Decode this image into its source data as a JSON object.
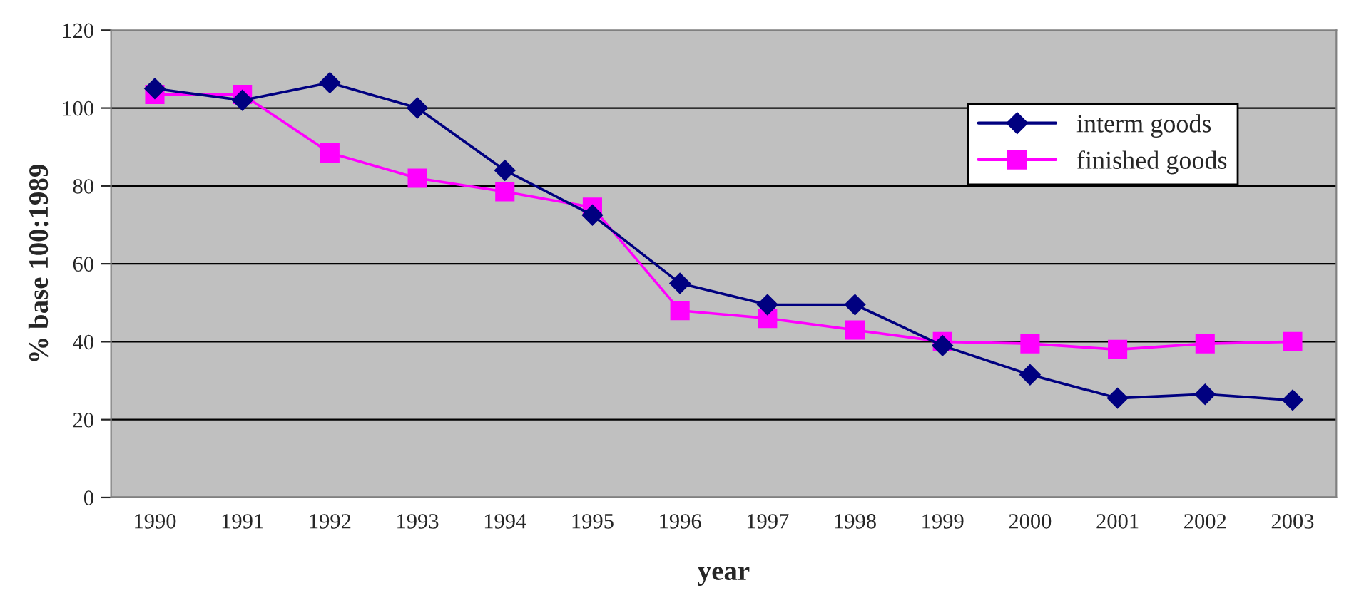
{
  "chart_data": {
    "type": "line",
    "xlabel": "year",
    "ylabel": "% base 100:1989",
    "categories": [
      "1990",
      "1991",
      "1992",
      "1993",
      "1994",
      "1995",
      "1996",
      "1997",
      "1998",
      "1999",
      "2000",
      "2001",
      "2002",
      "2003"
    ],
    "series": [
      {
        "name": "interm goods",
        "color": "#000080",
        "marker": "diamond",
        "values": [
          105,
          102,
          106.5,
          100,
          84,
          72.5,
          55,
          49.5,
          49.5,
          39,
          31.5,
          25.5,
          26.5,
          25
        ]
      },
      {
        "name": "finished goods",
        "color": "#ff00ff",
        "marker": "square",
        "values": [
          103.5,
          103.5,
          88.5,
          82,
          78.5,
          74.5,
          48,
          46,
          43,
          40,
          39.5,
          38,
          39.5,
          40
        ]
      }
    ],
    "ylim": [
      0,
      120
    ],
    "yticks": [
      0,
      20,
      40,
      60,
      80,
      100,
      120
    ],
    "grid": "y",
    "legend": "top right",
    "line_style": "solid"
  }
}
